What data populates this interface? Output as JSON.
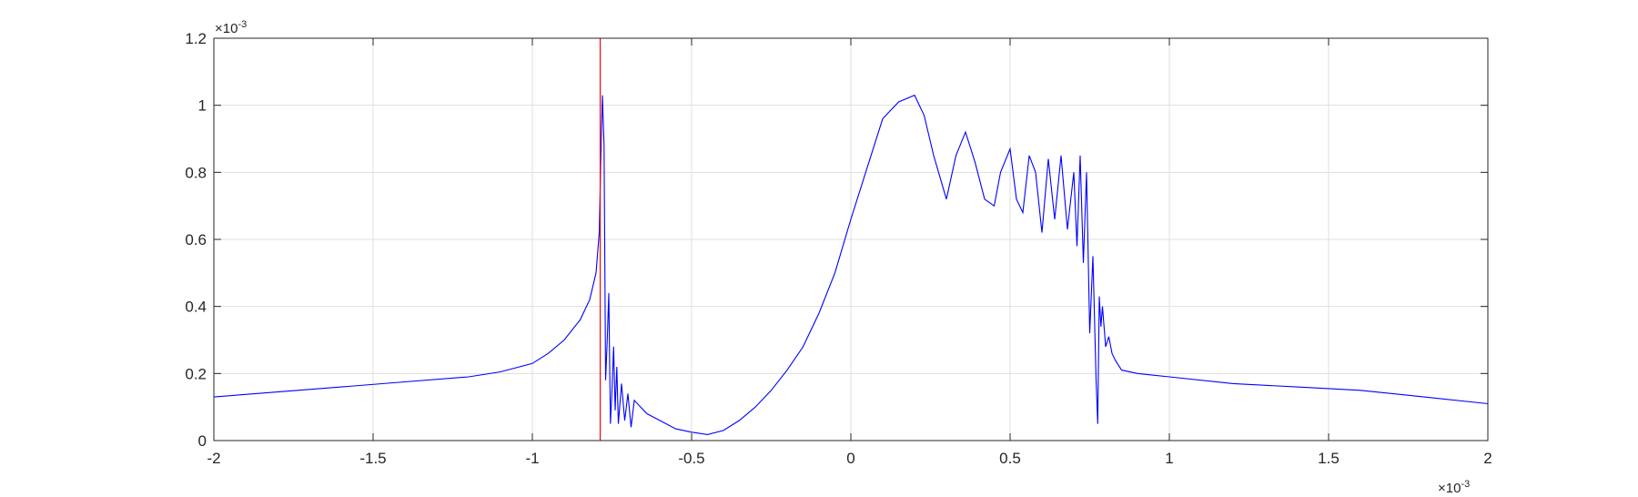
{
  "chart_data": {
    "type": "line",
    "title": "",
    "xlabel": "",
    "ylabel": "",
    "xlim": [
      -0.002,
      0.002
    ],
    "ylim": [
      0,
      0.0012
    ],
    "grid": true,
    "x_ticks": [
      -0.002,
      -0.0015,
      -0.001,
      -0.0005,
      0,
      0.0005,
      0.001,
      0.0015,
      0.002
    ],
    "x_tick_labels": [
      "-2",
      "-1.5",
      "-1",
      "-0.5",
      "0",
      "0.5",
      "1",
      "1.5",
      "2"
    ],
    "y_ticks": [
      0,
      0.0002,
      0.0004,
      0.0006,
      0.0008,
      0.001,
      0.0012
    ],
    "y_tick_labels": [
      "0",
      "0.2",
      "0.4",
      "0.6",
      "0.8",
      "1",
      "1.2"
    ],
    "x_exponent_label": {
      "base": "×10",
      "exp": "-3"
    },
    "y_exponent_label": {
      "base": "×10",
      "exp": "-3"
    },
    "series": [
      {
        "color": "#0000ff",
        "x": [
          -0.002,
          -0.0018,
          -0.0016,
          -0.0014,
          -0.0012,
          -0.0011,
          -0.001,
          -0.00095,
          -0.0009,
          -0.00085,
          -0.00082,
          -0.0008,
          -0.00079,
          -0.000785,
          -0.00078,
          -0.000775,
          -0.00077,
          -0.000765,
          -0.00076,
          -0.000755,
          -0.00075,
          -0.000745,
          -0.00074,
          -0.000735,
          -0.00073,
          -0.00072,
          -0.00071,
          -0.0007,
          -0.00069,
          -0.00068,
          -0.00066,
          -0.00064,
          -0.0006,
          -0.00055,
          -0.0005,
          -0.00045,
          -0.0004,
          -0.00035,
          -0.0003,
          -0.00025,
          -0.0002,
          -0.00015,
          -0.0001,
          -5e-05,
          0,
          5e-05,
          0.0001,
          0.00015,
          0.0002,
          0.00023,
          0.00026,
          0.0003,
          0.00033,
          0.00036,
          0.00039,
          0.00042,
          0.00045,
          0.00047,
          0.0005,
          0.00052,
          0.00054,
          0.00056,
          0.00058,
          0.0006,
          0.00062,
          0.00064,
          0.00066,
          0.00068,
          0.0007,
          0.00071,
          0.00072,
          0.00073,
          0.00074,
          0.00075,
          0.00076,
          0.00077,
          0.000775,
          0.00078,
          0.000785,
          0.00079,
          0.0008,
          0.00081,
          0.00082,
          0.00083,
          0.00085,
          0.0009,
          0.001,
          0.0012,
          0.0014,
          0.0016,
          0.0018,
          0.002
        ],
        "y": [
          0.00013,
          0.000145,
          0.00016,
          0.000175,
          0.00019,
          0.000205,
          0.00023,
          0.00026,
          0.0003,
          0.00036,
          0.00042,
          0.0005,
          0.00062,
          0.00085,
          0.00103,
          0.00088,
          0.00018,
          0.0003,
          0.00044,
          5e-05,
          0.00015,
          0.00028,
          9e-05,
          0.00022,
          5e-05,
          0.00017,
          6e-05,
          0.00014,
          4e-05,
          0.00012,
          0.0001,
          8e-05,
          6e-05,
          3.5e-05,
          2.5e-05,
          1.8e-05,
          3e-05,
          6e-05,
          0.0001,
          0.00015,
          0.00021,
          0.00028,
          0.00038,
          0.0005,
          0.00066,
          0.00081,
          0.00096,
          0.00101,
          0.00103,
          0.00097,
          0.00085,
          0.00072,
          0.00085,
          0.00092,
          0.00083,
          0.00072,
          0.0007,
          0.0008,
          0.00087,
          0.00072,
          0.00068,
          0.00085,
          0.0008,
          0.00062,
          0.00084,
          0.00066,
          0.00085,
          0.00063,
          0.0008,
          0.00058,
          0.00085,
          0.00053,
          0.0008,
          0.00032,
          0.00055,
          0.00018,
          5e-05,
          0.00043,
          0.00034,
          0.0004,
          0.00028,
          0.00031,
          0.00026,
          0.00024,
          0.00021,
          0.0002,
          0.00019,
          0.00017,
          0.00016,
          0.00015,
          0.00013,
          0.00011
        ]
      }
    ],
    "vertical_marker": {
      "x": -0.000787,
      "color": "#ff0000"
    }
  }
}
